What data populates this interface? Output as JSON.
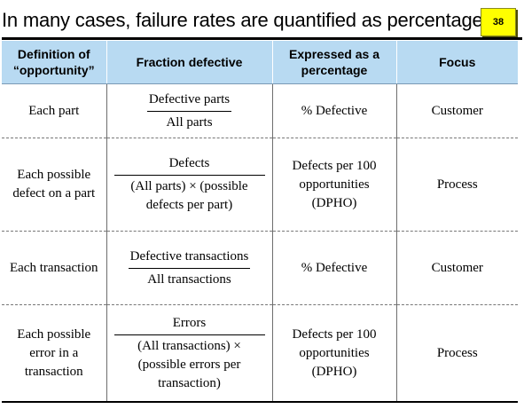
{
  "slide": {
    "title": "In many cases, failure rates are quantified as percentages",
    "page_number": "38"
  },
  "table": {
    "headers": [
      "Definition of “opportunity”",
      "Fraction defective",
      "Expressed as a percentage",
      "Focus"
    ],
    "rows": [
      {
        "definition": "Each part",
        "numerator": "Defective parts",
        "denominator": "All parts",
        "expressed": "% Defective",
        "focus": "Customer"
      },
      {
        "definition": "Each possible defect on a part",
        "numerator": "Defects",
        "denominator": "(All parts) × (possible defects per part)",
        "expressed": "Defects per 100 opportunities (DPHO)",
        "focus": "Process"
      },
      {
        "definition": "Each transaction",
        "numerator": "Defective transactions",
        "denominator": "All transactions",
        "expressed": "% Defective",
        "focus": "Customer"
      },
      {
        "definition": "Each possible error in a transaction",
        "numerator": "Errors",
        "denominator": "(All transactions) × (possible errors per transaction)",
        "expressed": "Defects per 100 opportunities (DPHO)",
        "focus": "Process"
      }
    ]
  }
}
